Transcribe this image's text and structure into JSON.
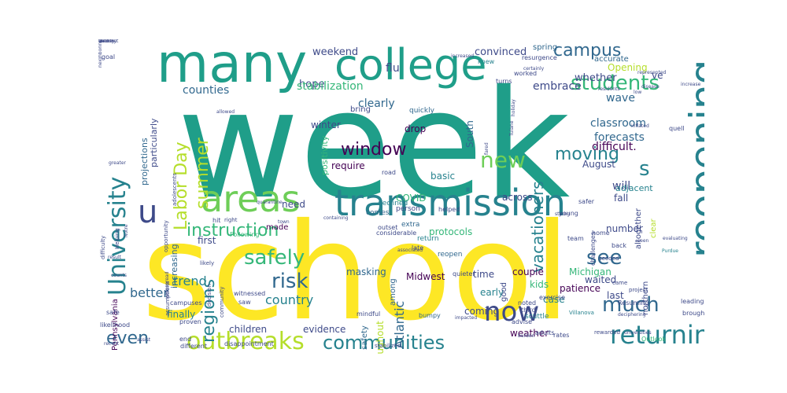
{
  "palette": {
    "purple": "#440154",
    "indigo": "#3e4a89",
    "blue": "#31688e",
    "teal": "#26828e",
    "seagreen": "#1f9e89",
    "green": "#35b779",
    "lime": "#6ece58",
    "yellowgreen": "#b5de2b",
    "yellow": "#fde725"
  },
  "words": [
    {
      "text": "week",
      "size": 190,
      "color": "seagreen",
      "v": false
    },
    {
      "text": "school",
      "size": 170,
      "color": "yellow",
      "v": false
    },
    {
      "text": "many",
      "size": 68,
      "color": "seagreen",
      "v": false
    },
    {
      "text": "college",
      "size": 54,
      "color": "seagreen",
      "v": false
    },
    {
      "text": "transmission",
      "size": 46,
      "color": "teal",
      "v": false
    },
    {
      "text": "areas",
      "size": 46,
      "color": "lime",
      "v": false
    },
    {
      "text": "reopening",
      "size": 50,
      "color": "teal",
      "v": true
    },
    {
      "text": "u",
      "size": 40,
      "color": "indigo",
      "v": false
    },
    {
      "text": "University",
      "size": 30,
      "color": "teal",
      "v": true
    },
    {
      "text": "outbreaks",
      "size": 30,
      "color": "yellowgreen",
      "v": false
    },
    {
      "text": "returning",
      "size": 32,
      "color": "teal",
      "v": false
    },
    {
      "text": "now",
      "size": 34,
      "color": "indigo",
      "v": false
    },
    {
      "text": "communities",
      "size": 24,
      "color": "teal",
      "v": false
    },
    {
      "text": "students",
      "size": 26,
      "color": "green",
      "v": false
    },
    {
      "text": "new",
      "size": 28,
      "color": "lime",
      "v": false
    },
    {
      "text": "safely",
      "size": 26,
      "color": "green",
      "v": false
    },
    {
      "text": "risk",
      "size": 26,
      "color": "blue",
      "v": false
    },
    {
      "text": "much",
      "size": 26,
      "color": "blue",
      "v": false
    },
    {
      "text": "see",
      "size": 26,
      "color": "blue",
      "v": false
    },
    {
      "text": "s",
      "size": 26,
      "color": "teal",
      "v": false
    },
    {
      "text": "instruction",
      "size": 22,
      "color": "green",
      "v": false
    },
    {
      "text": "window",
      "size": 22,
      "color": "purple",
      "v": false
    },
    {
      "text": "moving",
      "size": 22,
      "color": "teal",
      "v": false
    },
    {
      "text": "campus",
      "size": 22,
      "color": "blue",
      "v": false
    },
    {
      "text": "summer",
      "size": 22,
      "color": "yellowgreen",
      "v": true
    },
    {
      "text": "Labor Day",
      "size": 22,
      "color": "yellowgreen",
      "v": true
    },
    {
      "text": "regions",
      "size": 22,
      "color": "teal",
      "v": true
    },
    {
      "text": "vacationers",
      "size": 20,
      "color": "teal",
      "v": true
    },
    {
      "text": "even",
      "size": 22,
      "color": "blue",
      "v": false
    },
    {
      "text": "Mid Atlantic",
      "size": 16,
      "color": "blue",
      "v": true
    },
    {
      "text": "country",
      "size": 16,
      "color": "teal",
      "v": false
    },
    {
      "text": "trend",
      "size": 16,
      "color": "teal",
      "v": false
    },
    {
      "text": "better",
      "size": 16,
      "color": "blue",
      "v": false
    },
    {
      "text": "counties",
      "size": 14,
      "color": "blue",
      "v": false
    },
    {
      "text": "hope",
      "size": 13,
      "color": "indigo",
      "v": false
    },
    {
      "text": "weekend",
      "size": 13,
      "color": "indigo",
      "v": false
    },
    {
      "text": "convinced",
      "size": 13,
      "color": "indigo",
      "v": false
    },
    {
      "text": "spring",
      "size": 10,
      "color": "blue",
      "v": false
    },
    {
      "text": "embrace",
      "size": 14,
      "color": "indigo",
      "v": false
    },
    {
      "text": "whether",
      "size": 13,
      "color": "indigo",
      "v": false
    },
    {
      "text": "Opening",
      "size": 12,
      "color": "yellowgreen",
      "v": false
    },
    {
      "text": "accurate",
      "size": 10,
      "color": "blue",
      "v": false
    },
    {
      "text": "ve",
      "size": 12,
      "color": "indigo",
      "v": false
    },
    {
      "text": "stabilization",
      "size": 14,
      "color": "green",
      "v": false
    },
    {
      "text": "flu",
      "size": 14,
      "color": "indigo",
      "v": false
    },
    {
      "text": "clearly",
      "size": 14,
      "color": "blue",
      "v": false
    },
    {
      "text": "wave",
      "size": 14,
      "color": "blue",
      "v": false
    },
    {
      "text": "classroom",
      "size": 14,
      "color": "blue",
      "v": false
    },
    {
      "text": "difficult.",
      "size": 14,
      "color": "purple",
      "v": false
    },
    {
      "text": "forecasts",
      "size": 14,
      "color": "blue",
      "v": false
    },
    {
      "text": "August",
      "size": 12,
      "color": "indigo",
      "v": false
    },
    {
      "text": "will",
      "size": 14,
      "color": "indigo",
      "v": false
    },
    {
      "text": "fall",
      "size": 12,
      "color": "indigo",
      "v": false
    },
    {
      "text": "across",
      "size": 12,
      "color": "indigo",
      "v": false
    },
    {
      "text": "basic",
      "size": 12,
      "color": "teal",
      "v": false
    },
    {
      "text": "require",
      "size": 12,
      "color": "purple",
      "v": false
    },
    {
      "text": "drop",
      "size": 12,
      "color": "purple",
      "v": false
    },
    {
      "text": "winter",
      "size": 12,
      "color": "indigo",
      "v": false
    },
    {
      "text": "South",
      "size": 12,
      "color": "blue",
      "v": true
    },
    {
      "text": "need",
      "size": 12,
      "color": "indigo",
      "v": false
    },
    {
      "text": "COVID",
      "size": 12,
      "color": "green",
      "v": false
    },
    {
      "text": "first",
      "size": 12,
      "color": "indigo",
      "v": false
    },
    {
      "text": "made",
      "size": 10,
      "color": "purple",
      "v": false
    },
    {
      "text": "protocols",
      "size": 12,
      "color": "green",
      "v": false
    },
    {
      "text": "number",
      "size": 12,
      "color": "indigo",
      "v": false
    },
    {
      "text": "Michigan",
      "size": 12,
      "color": "green",
      "v": false
    },
    {
      "text": "patience",
      "size": 12,
      "color": "purple",
      "v": false
    },
    {
      "text": "waited",
      "size": 12,
      "color": "indigo",
      "v": false
    },
    {
      "text": "last",
      "size": 12,
      "color": "indigo",
      "v": false
    },
    {
      "text": "couple",
      "size": 12,
      "color": "purple",
      "v": false
    },
    {
      "text": "case",
      "size": 12,
      "color": "teal",
      "v": false
    },
    {
      "text": "Midwest",
      "size": 12,
      "color": "purple",
      "v": false
    },
    {
      "text": "kids",
      "size": 12,
      "color": "green",
      "v": false
    },
    {
      "text": "time",
      "size": 12,
      "color": "indigo",
      "v": false
    },
    {
      "text": "early",
      "size": 12,
      "color": "teal",
      "v": false
    },
    {
      "text": "coming",
      "size": 12,
      "color": "indigo",
      "v": false
    },
    {
      "text": "weather",
      "size": 12,
      "color": "purple",
      "v": false
    },
    {
      "text": "children",
      "size": 12,
      "color": "indigo",
      "v": false
    },
    {
      "text": "evidence",
      "size": 12,
      "color": "indigo",
      "v": false
    },
    {
      "text": "finally",
      "size": 12,
      "color": "teal",
      "v": false
    },
    {
      "text": "Pennsylvania",
      "size": 10,
      "color": "purple",
      "v": true
    },
    {
      "text": "masking",
      "size": 12,
      "color": "blue",
      "v": false
    },
    {
      "text": "throughout",
      "size": 12,
      "color": "yellowgreen",
      "v": true
    },
    {
      "text": "among",
      "size": 10,
      "color": "blue",
      "v": true
    },
    {
      "text": "safety",
      "size": 10,
      "color": "blue",
      "v": true
    },
    {
      "text": "good",
      "size": 10,
      "color": "indigo",
      "v": true
    },
    {
      "text": "increasing",
      "size": 11,
      "color": "blue",
      "v": true
    },
    {
      "text": "projections",
      "size": 11,
      "color": "blue",
      "v": true
    },
    {
      "text": "positivity",
      "size": 11,
      "color": "green",
      "v": true
    },
    {
      "text": "particularly",
      "size": 11,
      "color": "indigo",
      "v": true
    },
    {
      "text": "altogether",
      "size": 10,
      "color": "indigo",
      "v": true
    },
    {
      "text": "clear",
      "size": 10,
      "color": "yellowgreen",
      "v": true
    },
    {
      "text": "adjacent",
      "size": 11,
      "color": "teal",
      "v": false
    },
    {
      "text": "northern",
      "size": 10,
      "color": "indigo",
      "v": true
    },
    {
      "text": "bring",
      "size": 10,
      "color": "indigo",
      "v": false
    },
    {
      "text": "quickly",
      "size": 9,
      "color": "blue",
      "v": false
    },
    {
      "text": "road",
      "size": 8,
      "color": "indigo",
      "v": false
    },
    {
      "text": "declined",
      "size": 9,
      "color": "teal",
      "v": false
    },
    {
      "text": "comes",
      "size": 9,
      "color": "blue",
      "v": false
    },
    {
      "text": "person",
      "size": 9,
      "color": "indigo",
      "v": false
    },
    {
      "text": "outset",
      "size": 8,
      "color": "indigo",
      "v": false
    },
    {
      "text": "considerable",
      "size": 8,
      "color": "indigo",
      "v": false
    },
    {
      "text": "extra",
      "size": 9,
      "color": "blue",
      "v": false
    },
    {
      "text": "return",
      "size": 9,
      "color": "teal",
      "v": false
    },
    {
      "text": "late",
      "size": 8,
      "color": "indigo",
      "v": false
    },
    {
      "text": "reopen",
      "size": 9,
      "color": "blue",
      "v": false
    },
    {
      "text": "quieter",
      "size": 8,
      "color": "indigo",
      "v": false
    },
    {
      "text": "noted",
      "size": 8,
      "color": "indigo",
      "v": false
    },
    {
      "text": "third",
      "size": 8,
      "color": "indigo",
      "v": false
    },
    {
      "text": "exercise",
      "size": 8,
      "color": "indigo",
      "v": false
    },
    {
      "text": "scuttle",
      "size": 9,
      "color": "teal",
      "v": false
    },
    {
      "text": "bumpy",
      "size": 8,
      "color": "blue",
      "v": false
    },
    {
      "text": "advise",
      "size": 8,
      "color": "indigo",
      "v": false
    },
    {
      "text": "adults",
      "size": 8,
      "color": "indigo",
      "v": false
    },
    {
      "text": "rates",
      "size": 8,
      "color": "indigo",
      "v": false
    },
    {
      "text": "Outlook",
      "size": 8,
      "color": "green",
      "v": false
    },
    {
      "text": "universities",
      "size": 6,
      "color": "indigo",
      "v": false
    },
    {
      "text": "burden",
      "size": 6,
      "color": "indigo",
      "v": false
    },
    {
      "text": "Villanova",
      "size": 7,
      "color": "teal",
      "v": false
    },
    {
      "text": "leading",
      "size": 8,
      "color": "indigo",
      "v": false
    },
    {
      "text": "brought",
      "size": 8,
      "color": "indigo",
      "v": false
    },
    {
      "text": "deciphering",
      "size": 6,
      "color": "indigo",
      "v": false
    },
    {
      "text": "challenges",
      "size": 8,
      "color": "indigo",
      "v": true
    },
    {
      "text": "project",
      "size": 7,
      "color": "indigo",
      "v": false
    },
    {
      "text": "seeded",
      "size": 7,
      "color": "indigo",
      "v": false
    },
    {
      "text": "back",
      "size": 8,
      "color": "indigo",
      "v": false
    },
    {
      "text": "home",
      "size": 8,
      "color": "indigo",
      "v": false
    },
    {
      "text": "safer",
      "size": 8,
      "color": "indigo",
      "v": false
    },
    {
      "text": "rewarded",
      "size": 7,
      "color": "indigo",
      "v": false
    },
    {
      "text": "seen",
      "size": 6,
      "color": "indigo",
      "v": false
    },
    {
      "text": "evaluating",
      "size": 6,
      "color": "indigo",
      "v": false
    },
    {
      "text": "Purdue",
      "size": 6,
      "color": "teal",
      "v": false
    },
    {
      "text": "Resuming",
      "size": 8,
      "color": "indigo",
      "v": false
    },
    {
      "text": "team",
      "size": 8,
      "color": "indigo",
      "v": false
    },
    {
      "text": "young",
      "size": 8,
      "color": "indigo",
      "v": false
    },
    {
      "text": "strong",
      "size": 6,
      "color": "indigo",
      "v": false
    },
    {
      "text": "quell",
      "size": 8,
      "color": "indigo",
      "v": false
    },
    {
      "text": "inflated",
      "size": 6,
      "color": "indigo",
      "v": false
    },
    {
      "text": "increase",
      "size": 6,
      "color": "indigo",
      "v": false
    },
    {
      "text": "represented",
      "size": 6,
      "color": "indigo",
      "v": false
    },
    {
      "text": "residents",
      "size": 6,
      "color": "indigo",
      "v": false
    },
    {
      "text": "resurgence",
      "size": 8,
      "color": "indigo",
      "v": false
    },
    {
      "text": "turns",
      "size": 8,
      "color": "indigo",
      "v": false
    },
    {
      "text": "knew",
      "size": 8,
      "color": "teal",
      "v": false
    },
    {
      "text": "certainly",
      "size": 6,
      "color": "indigo",
      "v": false
    },
    {
      "text": "increased",
      "size": 6,
      "color": "indigo",
      "v": false
    },
    {
      "text": "worked",
      "size": 8,
      "color": "indigo",
      "v": false
    },
    {
      "text": "goal",
      "size": 8,
      "color": "indigo",
      "v": false
    },
    {
      "text": "allowed",
      "size": 6,
      "color": "indigo",
      "v": false
    },
    {
      "text": "Following",
      "size": 8,
      "color": "green",
      "v": false
    },
    {
      "text": "quarantine",
      "size": 6,
      "color": "indigo",
      "v": false
    },
    {
      "text": "town",
      "size": 6,
      "color": "indigo",
      "v": false
    },
    {
      "text": "containing",
      "size": 6,
      "color": "indigo",
      "v": false
    },
    {
      "text": "helped",
      "size": 8,
      "color": "indigo",
      "v": false
    },
    {
      "text": "holiday",
      "size": 6,
      "color": "indigo",
      "v": true
    },
    {
      "text": "fared",
      "size": 6,
      "color": "indigo",
      "v": true
    },
    {
      "text": "Tulane",
      "size": 6,
      "color": "indigo",
      "v": true
    },
    {
      "text": "Notre",
      "size": 6,
      "color": "indigo",
      "v": true
    },
    {
      "text": "hit",
      "size": 8,
      "color": "indigo",
      "v": false
    },
    {
      "text": "right",
      "size": 7,
      "color": "indigo",
      "v": false
    },
    {
      "text": "greater",
      "size": 6,
      "color": "indigo",
      "v": false
    },
    {
      "text": "adolescents",
      "size": 7,
      "color": "indigo",
      "v": true
    },
    {
      "text": "Helping",
      "size": 7,
      "color": "indigo",
      "v": true
    },
    {
      "text": "opportunity",
      "size": 7,
      "color": "indigo",
      "v": true
    },
    {
      "text": "difficulty",
      "size": 7,
      "color": "indigo",
      "v": true
    },
    {
      "text": "counts",
      "size": 6,
      "color": "indigo",
      "v": false
    },
    {
      "text": "result",
      "size": 6,
      "color": "indigo",
      "v": false
    },
    {
      "text": "widespread",
      "size": 6,
      "color": "indigo",
      "v": true
    },
    {
      "text": "assumptions",
      "size": 7,
      "color": "indigo",
      "v": true
    },
    {
      "text": "community",
      "size": 7,
      "color": "indigo",
      "v": true
    },
    {
      "text": "likely",
      "size": 7,
      "color": "indigo",
      "v": false
    },
    {
      "text": "campuses",
      "size": 8,
      "color": "indigo",
      "v": false
    },
    {
      "text": "decision",
      "size": 7,
      "color": "indigo",
      "v": true
    },
    {
      "text": "witnessed",
      "size": 8,
      "color": "indigo",
      "v": false
    },
    {
      "text": "saw",
      "size": 8,
      "color": "indigo",
      "v": false
    },
    {
      "text": "safe",
      "size": 8,
      "color": "indigo",
      "v": false
    },
    {
      "text": "likelihood",
      "size": 8,
      "color": "indigo",
      "v": false
    },
    {
      "text": "proven",
      "size": 8,
      "color": "indigo",
      "v": false
    },
    {
      "text": "end",
      "size": 8,
      "color": "indigo",
      "v": false
    },
    {
      "text": "assist",
      "size": 6,
      "color": "indigo",
      "v": false
    },
    {
      "text": "different",
      "size": 8,
      "color": "indigo",
      "v": false
    },
    {
      "text": "recent",
      "size": 6,
      "color": "indigo",
      "v": false
    },
    {
      "text": "disappointment",
      "size": 8,
      "color": "indigo",
      "v": false
    },
    {
      "text": "mindful",
      "size": 8,
      "color": "indigo",
      "v": false
    },
    {
      "text": "associated",
      "size": 6,
      "color": "indigo",
      "v": false
    },
    {
      "text": "stabilized",
      "size": 7,
      "color": "indigo",
      "v": false
    },
    {
      "text": "impacted",
      "size": 6,
      "color": "indigo",
      "v": false
    },
    {
      "text": "came",
      "size": 7,
      "color": "indigo",
      "v": false
    },
    {
      "text": "disease",
      "size": 6,
      "color": "indigo",
      "v": false
    },
    {
      "text": "low",
      "size": 6,
      "color": "indigo",
      "v": false
    },
    {
      "text": "unlikely",
      "size": 6,
      "color": "indigo",
      "v": false
    },
    {
      "text": "neighboring",
      "size": 6,
      "color": "indigo",
      "v": true
    },
    {
      "text": "Vermont",
      "size": 6,
      "color": "indigo",
      "v": false
    },
    {
      "text": "county",
      "size": 6,
      "color": "indigo",
      "v": false
    },
    {
      "text": "lead",
      "size": 6,
      "color": "indigo",
      "v": false
    }
  ]
}
